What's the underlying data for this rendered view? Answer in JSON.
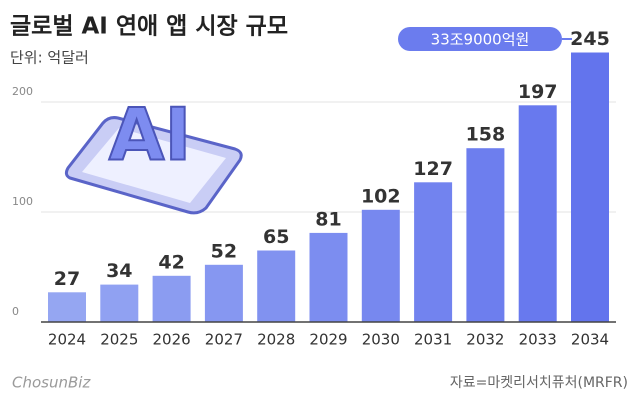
{
  "chart_data": {
    "type": "bar",
    "title": "글로벌 AI 연애 앱 시장 규모",
    "subtitle": "단위: 억달러",
    "categories": [
      "2024",
      "2025",
      "2026",
      "2027",
      "2028",
      "2029",
      "2030",
      "2031",
      "2032",
      "2033",
      "2034"
    ],
    "values": [
      27,
      34,
      42,
      52,
      65,
      81,
      102,
      127,
      158,
      197,
      245
    ],
    "colors": [
      "#95a6f2",
      "#90a1f2",
      "#8b9cf1",
      "#8697f1",
      "#8192f0",
      "#7c8df0",
      "#7788ef",
      "#7283ef",
      "#6d7eee",
      "#6879ee",
      "#6374ed"
    ],
    "ylim": [
      0,
      260
    ],
    "yticks": [
      0,
      100,
      200
    ],
    "grid": true,
    "annotation": "33조9000억원",
    "illustration_text": "AI",
    "source": "자료=마켓리서치퓨처(MRFR)",
    "logo": "ChosunBiz"
  }
}
